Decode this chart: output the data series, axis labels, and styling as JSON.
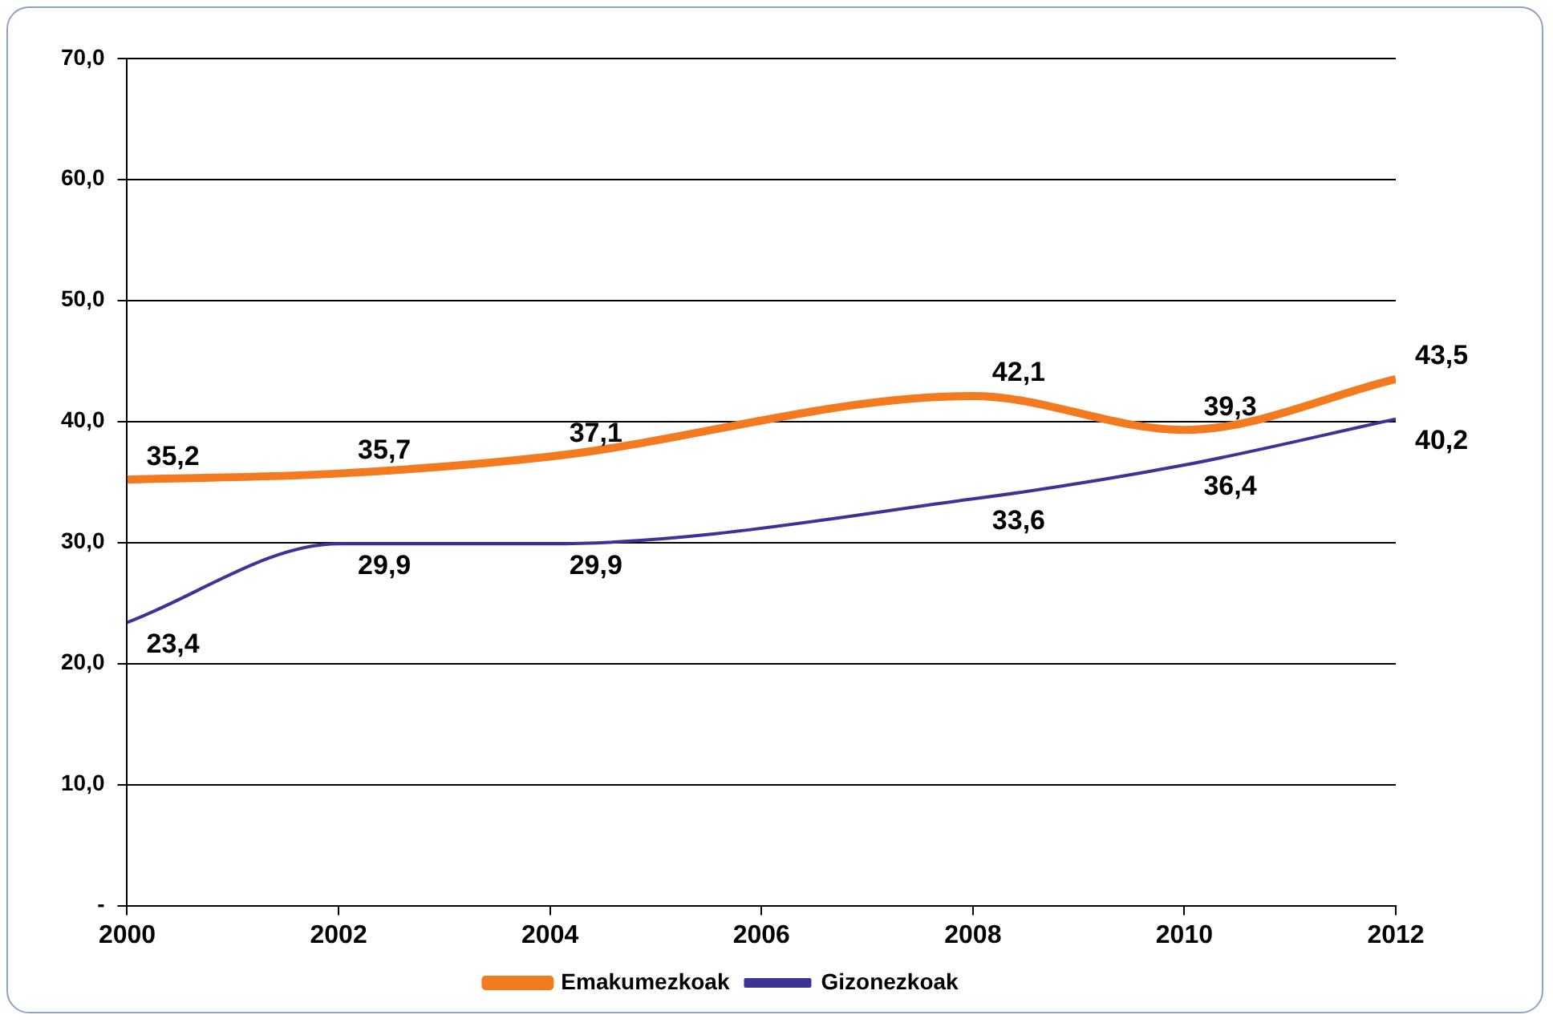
{
  "chart_data": {
    "type": "line",
    "x": [
      2000,
      2002,
      2004,
      2008,
      2010,
      2012
    ],
    "xlim": [
      2000,
      2012
    ],
    "xticks": [
      2000,
      2002,
      2004,
      2006,
      2008,
      2010,
      2012
    ],
    "ylim": [
      0,
      70
    ],
    "yticks": [
      {
        "value": 0,
        "label": "-"
      },
      {
        "value": 10,
        "label": "10,0"
      },
      {
        "value": 20,
        "label": "20,0"
      },
      {
        "value": 30,
        "label": "30,0"
      },
      {
        "value": 40,
        "label": "40,0"
      },
      {
        "value": 50,
        "label": "50,0"
      },
      {
        "value": 60,
        "label": "60,0"
      },
      {
        "value": 70,
        "label": "70,0"
      }
    ],
    "grid": "y",
    "legend": "bottom",
    "marker": "none",
    "series": [
      {
        "name": "Emakumezkoak",
        "color": "#f47a20",
        "values": [
          35.2,
          35.7,
          37.1,
          42.1,
          39.3,
          43.5
        ],
        "value_labels": [
          "35,2",
          "35,7",
          "37,1",
          "42,1",
          "39,3",
          "43,5"
        ]
      },
      {
        "name": "Gizonezkoak",
        "color": "#3b3496",
        "values": [
          23.4,
          29.9,
          29.9,
          33.6,
          36.4,
          40.2
        ],
        "value_labels": [
          "23,4",
          "29,9",
          "29,9",
          "33,6",
          "36,4",
          "40,2"
        ]
      }
    ]
  }
}
